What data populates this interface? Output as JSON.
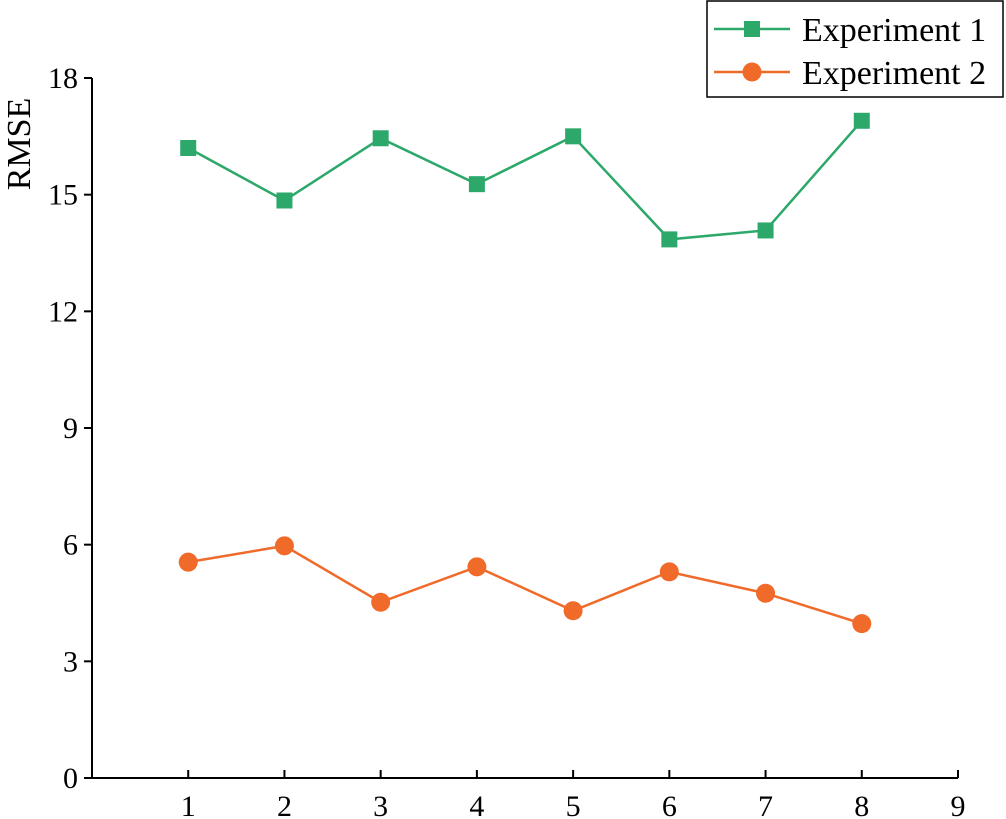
{
  "chart_data": {
    "type": "line",
    "title": "",
    "xlabel": "",
    "ylabel": "RMSE",
    "xlim": [
      0,
      9
    ],
    "ylim": [
      0,
      18
    ],
    "x_ticks": [
      1,
      2,
      3,
      4,
      5,
      6,
      7,
      8,
      9
    ],
    "y_ticks": [
      0,
      3,
      6,
      9,
      12,
      15,
      18
    ],
    "grid": false,
    "legend_position": "top-right",
    "x": [
      1,
      2,
      3,
      4,
      5,
      6,
      7,
      8
    ],
    "series": [
      {
        "name": "Experiment 1",
        "color": "#2ca86b",
        "marker": "square",
        "values": [
          16.2,
          14.85,
          16.45,
          15.27,
          16.5,
          13.85,
          14.08,
          16.9
        ]
      },
      {
        "name": "Experiment 2",
        "color": "#f06a2a",
        "marker": "circle",
        "values": [
          5.55,
          5.97,
          4.52,
          5.43,
          4.3,
          5.3,
          4.75,
          3.97
        ]
      }
    ]
  }
}
